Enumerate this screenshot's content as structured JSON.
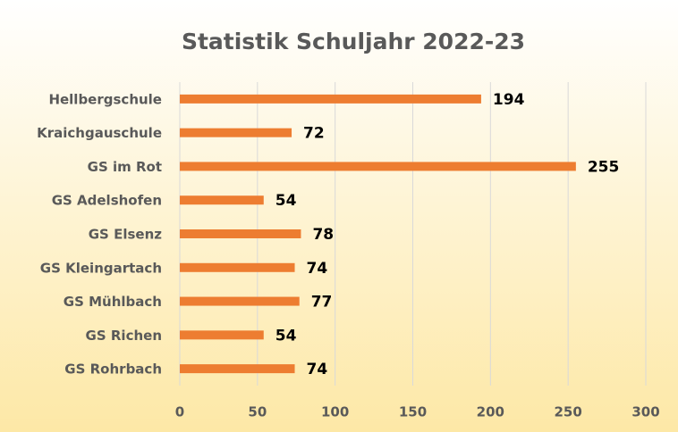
{
  "chart_data": {
    "type": "bar",
    "title": "Statistik Schuljahr 2022-23",
    "categories": [
      "Hellbergschule",
      "Kraichgauschule",
      "GS im Rot",
      "GS Adelshofen",
      "GS Elsenz",
      "GS Kleingartach",
      "GS Mühlbach",
      "GS Richen",
      "GS Rohrbach"
    ],
    "values": [
      194,
      72,
      255,
      54,
      78,
      74,
      77,
      54,
      74
    ],
    "color": "#ed7d31",
    "xlim": [
      0,
      300
    ],
    "xticks": [
      0,
      50,
      100,
      150,
      200,
      250,
      300
    ],
    "grid": true
  }
}
